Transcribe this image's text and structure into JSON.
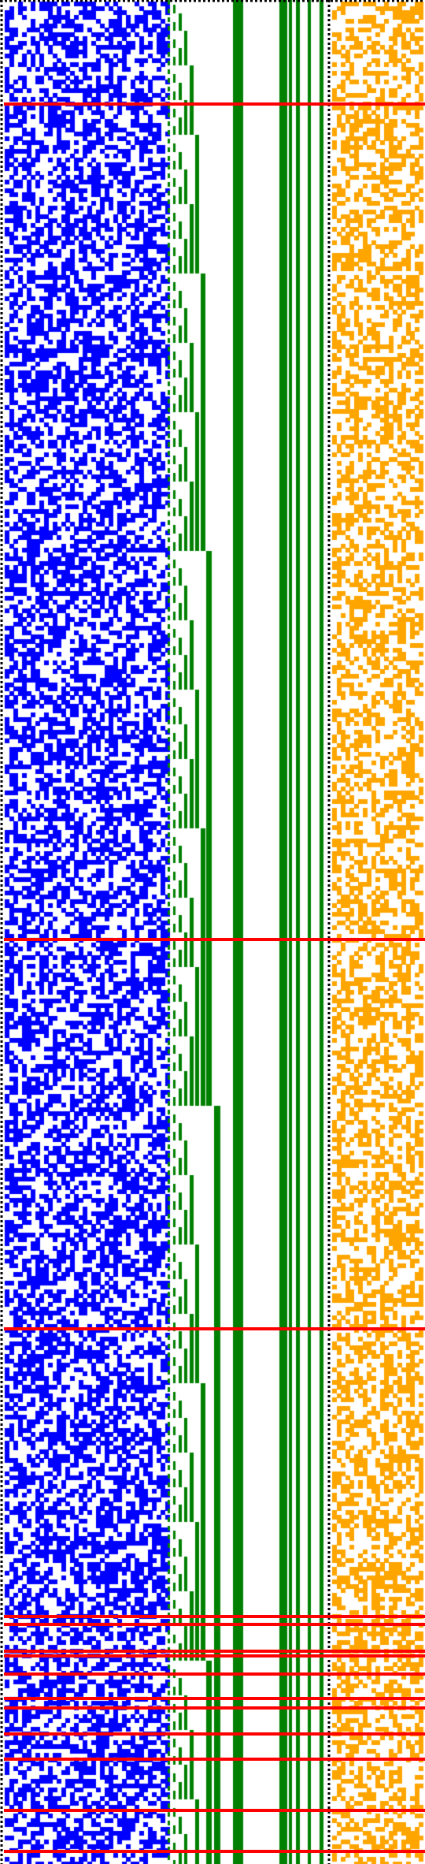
{
  "colors": {
    "background": "#ffffff",
    "random_cells": "#0000ff",
    "counter_bits": "#008000",
    "right_cells": "#ffa500",
    "separator_lines": "#ff0000",
    "dotted_borders": "#000000"
  },
  "panels": {
    "left": {
      "name": "random-cell-grid",
      "fill_density": 0.5
    },
    "middle": {
      "name": "binary-counter-bars"
    },
    "right": {
      "name": "sparse-cell-grid",
      "fill_density": 0.45
    }
  },
  "separators": {
    "count": 14
  }
}
